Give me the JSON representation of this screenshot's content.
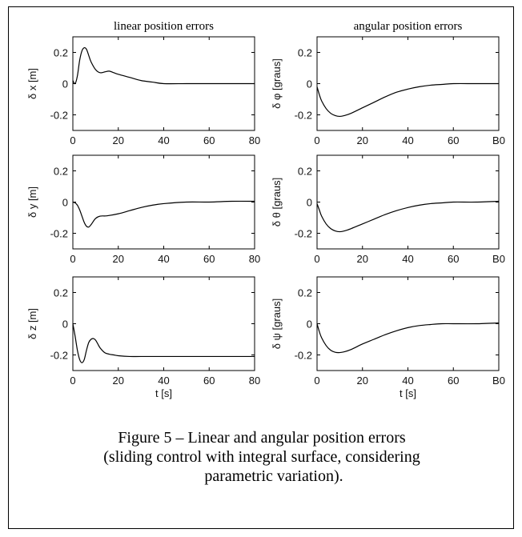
{
  "figure": {
    "caption_lines": [
      "Figure 5 – Linear and angular position errors",
      "(sliding control with integral surface, considering",
      "parametric variation)."
    ]
  },
  "chart_data": [
    {
      "type": "line",
      "title": "linear position errors",
      "xlabel": "",
      "ylabel": "δ x [m]",
      "xlim": [
        0,
        80
      ],
      "ylim": [
        -0.3,
        0.3
      ],
      "xticks": [
        "0",
        "20",
        "40",
        "60",
        "80"
      ],
      "yticks": [
        "0.2",
        "0",
        "-0.2"
      ],
      "x": [
        0,
        1,
        2,
        3,
        4,
        5,
        6,
        7,
        8,
        10,
        12,
        14,
        16,
        18,
        20,
        25,
        30,
        35,
        40,
        50,
        60,
        70,
        80
      ],
      "series": [
        {
          "values": [
            0.02,
            0.0,
            0.05,
            0.15,
            0.21,
            0.23,
            0.22,
            0.18,
            0.14,
            0.09,
            0.07,
            0.075,
            0.08,
            0.07,
            0.06,
            0.04,
            0.02,
            0.01,
            0.0,
            0.0,
            0.0,
            0.0,
            0.0
          ]
        }
      ]
    },
    {
      "type": "line",
      "title": "angular position errors",
      "xlabel": "",
      "ylabel": "δ φ [graus]",
      "xlim": [
        0,
        80
      ],
      "ylim": [
        -0.3,
        0.3
      ],
      "xticks": [
        "0",
        "20",
        "40",
        "60",
        "B0"
      ],
      "yticks": [
        "0.2",
        "0",
        "-0.2"
      ],
      "x": [
        0,
        1,
        2,
        4,
        6,
        8,
        10,
        12,
        15,
        20,
        25,
        30,
        35,
        40,
        45,
        50,
        55,
        60,
        70,
        80
      ],
      "series": [
        {
          "values": [
            -0.02,
            -0.07,
            -0.11,
            -0.16,
            -0.19,
            -0.205,
            -0.21,
            -0.205,
            -0.19,
            -0.155,
            -0.12,
            -0.085,
            -0.055,
            -0.035,
            -0.02,
            -0.01,
            -0.005,
            0.0,
            0.0,
            0.0
          ]
        }
      ]
    },
    {
      "type": "line",
      "title": "",
      "xlabel": "",
      "ylabel": "δ y [m]",
      "xlim": [
        0,
        80
      ],
      "ylim": [
        -0.3,
        0.3
      ],
      "xticks": [
        "0",
        "20",
        "40",
        "60",
        "80"
      ],
      "yticks": [
        "0.2",
        "0",
        "-0.2"
      ],
      "x": [
        0,
        1,
        2,
        3,
        4,
        5,
        6,
        7,
        8,
        10,
        12,
        15,
        20,
        25,
        30,
        35,
        40,
        50,
        60,
        70,
        80
      ],
      "series": [
        {
          "values": [
            0.0,
            -0.005,
            -0.02,
            -0.05,
            -0.09,
            -0.13,
            -0.155,
            -0.16,
            -0.145,
            -0.105,
            -0.09,
            -0.088,
            -0.075,
            -0.055,
            -0.035,
            -0.02,
            -0.01,
            0.0,
            0.0,
            0.005,
            0.005
          ]
        }
      ]
    },
    {
      "type": "line",
      "title": "",
      "xlabel": "",
      "ylabel": "δ θ [graus]",
      "xlim": [
        0,
        80
      ],
      "ylim": [
        -0.3,
        0.3
      ],
      "xticks": [
        "0",
        "20",
        "40",
        "60",
        "B0"
      ],
      "yticks": [
        "0.2",
        "0",
        "-0.2"
      ],
      "x": [
        0,
        1,
        2,
        4,
        6,
        8,
        10,
        12,
        15,
        20,
        25,
        30,
        35,
        40,
        45,
        50,
        55,
        60,
        70,
        80
      ],
      "series": [
        {
          "values": [
            -0.01,
            -0.05,
            -0.09,
            -0.14,
            -0.17,
            -0.185,
            -0.19,
            -0.185,
            -0.17,
            -0.14,
            -0.11,
            -0.08,
            -0.055,
            -0.035,
            -0.02,
            -0.01,
            -0.005,
            0.0,
            0.0,
            0.005
          ]
        }
      ]
    },
    {
      "type": "line",
      "title": "",
      "xlabel": "t [s]",
      "ylabel": "δ z [m]",
      "xlim": [
        0,
        80
      ],
      "ylim": [
        -0.3,
        0.3
      ],
      "xticks": [
        "0",
        "20",
        "40",
        "60",
        "80"
      ],
      "yticks": [
        "0.2",
        "0",
        "-0.2"
      ],
      "x": [
        0,
        1,
        2,
        3,
        4,
        5,
        6,
        7,
        8,
        9,
        10,
        11,
        12,
        14,
        16,
        18,
        20,
        25,
        30,
        40,
        50,
        60,
        70,
        80
      ],
      "series": [
        {
          "values": [
            0.0,
            -0.08,
            -0.17,
            -0.23,
            -0.25,
            -0.23,
            -0.17,
            -0.12,
            -0.1,
            -0.095,
            -0.105,
            -0.13,
            -0.155,
            -0.185,
            -0.195,
            -0.2,
            -0.205,
            -0.21,
            -0.21,
            -0.21,
            -0.21,
            -0.21,
            -0.21,
            -0.21
          ]
        }
      ]
    },
    {
      "type": "line",
      "title": "",
      "xlabel": "t [s]",
      "ylabel": "δ ψ [graus]",
      "xlim": [
        0,
        80
      ],
      "ylim": [
        -0.3,
        0.3
      ],
      "xticks": [
        "0",
        "20",
        "40",
        "60",
        "B0"
      ],
      "yticks": [
        "0.2",
        "0",
        "-0.2"
      ],
      "x": [
        0,
        1,
        2,
        4,
        6,
        8,
        10,
        12,
        15,
        20,
        25,
        30,
        35,
        40,
        45,
        50,
        55,
        60,
        70,
        80
      ],
      "series": [
        {
          "values": [
            0.0,
            -0.05,
            -0.09,
            -0.14,
            -0.17,
            -0.183,
            -0.185,
            -0.18,
            -0.165,
            -0.13,
            -0.1,
            -0.07,
            -0.045,
            -0.025,
            -0.012,
            -0.005,
            0.0,
            0.0,
            0.0,
            0.005
          ]
        }
      ]
    }
  ]
}
